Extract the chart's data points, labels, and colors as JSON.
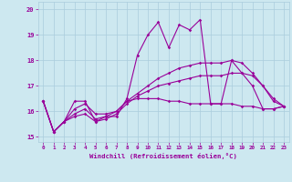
{
  "xlabel": "Windchill (Refroidissement éolien,°C)",
  "background_color": "#cde8f0",
  "line_color": "#990099",
  "grid_color": "#aaccdd",
  "xlim": [
    -0.5,
    23.5
  ],
  "ylim": [
    14.8,
    20.3
  ],
  "yticks": [
    15,
    16,
    17,
    18,
    19,
    20
  ],
  "xticks": [
    0,
    1,
    2,
    3,
    4,
    5,
    6,
    7,
    8,
    9,
    10,
    11,
    12,
    13,
    14,
    15,
    16,
    17,
    18,
    19,
    20,
    21,
    22,
    23
  ],
  "series1": [
    16.4,
    15.2,
    15.6,
    16.4,
    16.4,
    15.6,
    15.8,
    15.8,
    16.5,
    18.2,
    19.0,
    19.5,
    18.5,
    19.4,
    19.2,
    19.6,
    16.3,
    16.3,
    18.0,
    17.5,
    17.0,
    16.1,
    16.1,
    16.2
  ],
  "series2": [
    16.4,
    15.2,
    15.6,
    16.1,
    16.3,
    15.9,
    15.9,
    16.0,
    16.4,
    16.5,
    16.5,
    16.5,
    16.4,
    16.4,
    16.3,
    16.3,
    16.3,
    16.3,
    16.3,
    16.2,
    16.2,
    16.1,
    16.1,
    16.2
  ],
  "series3": [
    16.4,
    15.2,
    15.6,
    15.8,
    15.9,
    15.6,
    15.7,
    15.9,
    16.3,
    16.6,
    16.8,
    17.0,
    17.1,
    17.2,
    17.3,
    17.4,
    17.4,
    17.4,
    17.5,
    17.5,
    17.4,
    17.0,
    16.5,
    16.2
  ],
  "series4": [
    16.4,
    15.2,
    15.6,
    15.9,
    16.1,
    15.7,
    15.8,
    16.0,
    16.4,
    16.7,
    17.0,
    17.3,
    17.5,
    17.7,
    17.8,
    17.9,
    17.9,
    17.9,
    18.0,
    17.9,
    17.5,
    17.0,
    16.4,
    16.2
  ]
}
